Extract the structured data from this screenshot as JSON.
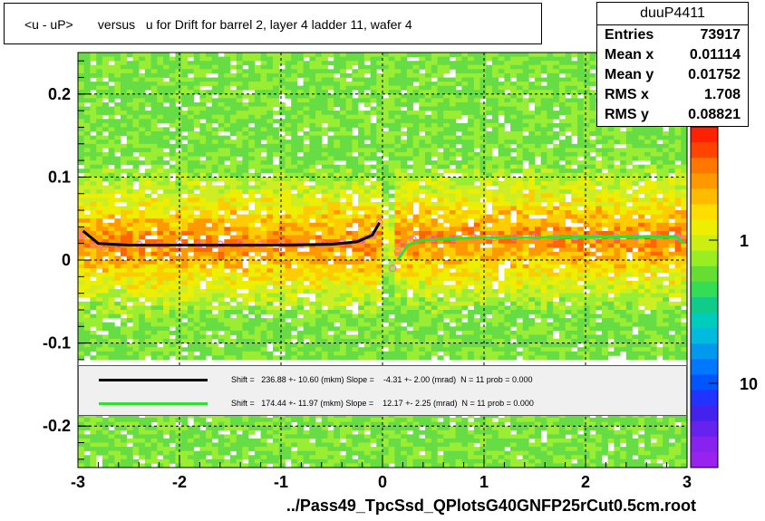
{
  "title": "<u - uP>       versus   u for Drift for barrel 2, layer 4 ladder 11, wafer 4",
  "stats": {
    "name": "duuP4411",
    "rows": [
      {
        "label": "Entries",
        "value": "73917"
      },
      {
        "label": "Mean x",
        "value": "0.01114"
      },
      {
        "label": "Mean y",
        "value": "0.01752"
      },
      {
        "label": "RMS x",
        "value": "1.708"
      },
      {
        "label": "RMS y",
        "value": "0.08821"
      }
    ]
  },
  "footer": "../Pass49_TpcSsd_QPlotsG40GNFP25rCut0.5cm.root",
  "fits": [
    {
      "color": "#000000",
      "text": "Shift =   236.88 +- 10.60 (mkm) Slope =    -4.31 +- 2.00 (mrad)  N = 11 prob = 0.000"
    },
    {
      "color": "#33dd33",
      "text": "Shift =   174.44 +- 11.97 (mkm) Slope =    12.17 +- 2.25 (mrad)  N = 11 prob = 0.000"
    }
  ],
  "colors": {
    "fit_left": "#000000",
    "fit_right": "#33dd33",
    "points": "#ff66cc"
  },
  "chart_data": {
    "type": "heatmap",
    "xlim": [
      -3,
      3
    ],
    "ylim": [
      -0.25,
      0.25
    ],
    "x_ticks": [
      "-3",
      "-2",
      "-1",
      "0",
      "1",
      "2",
      "3"
    ],
    "y_ticks": [
      "-0.2",
      "-0.1",
      "0",
      "0.1",
      "0.2"
    ],
    "z_ticks": [
      "1",
      "10"
    ],
    "grid": true,
    "profile_left": {
      "x": [
        -2.95,
        -2.85,
        -2.75,
        -2.6,
        -2.4,
        -2.2,
        -2.0,
        -1.8,
        -1.6,
        -1.4,
        -1.2,
        -1.0,
        -0.8,
        -0.6,
        -0.4,
        -0.2,
        -0.1,
        -0.03
      ],
      "y": [
        0.03,
        0.018,
        0.016,
        0.018,
        0.019,
        0.018,
        0.02,
        0.019,
        0.019,
        0.02,
        0.019,
        0.02,
        0.019,
        0.02,
        0.021,
        0.024,
        0.03,
        0.045
      ]
    },
    "profile_right": {
      "x": [
        0.1,
        0.15,
        0.2,
        0.3,
        0.5,
        0.7,
        0.9,
        1.1,
        1.3,
        1.5,
        1.7,
        1.9,
        2.1,
        2.3,
        2.5,
        2.7,
        2.9,
        2.95
      ],
      "y": [
        -0.01,
        0.01,
        0.02,
        0.025,
        0.026,
        0.026,
        0.027,
        0.027,
        0.027,
        0.028,
        0.027,
        0.028,
        0.028,
        0.028,
        0.028,
        0.029,
        0.028,
        0.025
      ]
    },
    "fit_left": {
      "x": [
        -2.95,
        -2.8,
        -2.5,
        -2,
        -1.5,
        -1,
        -0.5,
        -0.25,
        -0.1,
        -0.03
      ],
      "y": [
        0.035,
        0.02,
        0.018,
        0.018,
        0.018,
        0.018,
        0.019,
        0.022,
        0.03,
        0.045
      ]
    },
    "fit_right": {
      "x": [
        0.15,
        0.25,
        0.4,
        0.7,
        1,
        1.5,
        2,
        2.5,
        2.9,
        2.97
      ],
      "y": [
        0.0,
        0.018,
        0.024,
        0.026,
        0.027,
        0.027,
        0.028,
        0.028,
        0.028,
        0.02
      ]
    }
  }
}
